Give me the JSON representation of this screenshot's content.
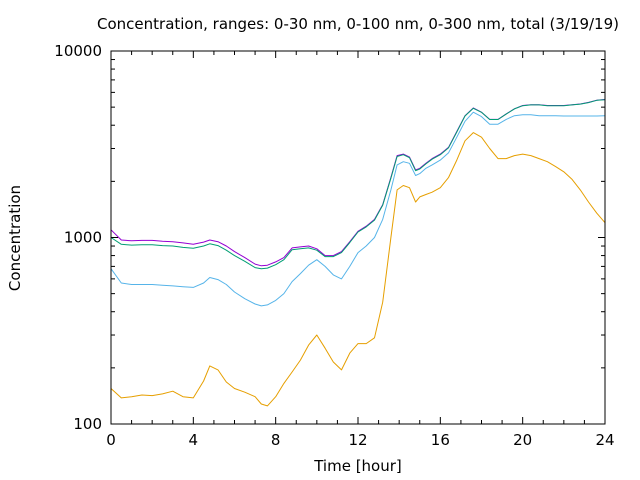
{
  "chart_data": {
    "type": "line",
    "title": "Concentration, ranges: 0-30 nm, 0-100 nm, 0-300 nm, total (3/19/19)",
    "xlabel": "Time [hour]",
    "ylabel": "Concentration",
    "xlim": [
      0,
      24
    ],
    "ylim": [
      100,
      10000
    ],
    "yscale": "log",
    "grid": false,
    "legend": "none",
    "x_ticks": [
      0,
      4,
      8,
      12,
      16,
      20,
      24
    ],
    "y_ticks": [
      100,
      1000,
      10000
    ],
    "x_tick_labels": [
      "0",
      "4",
      "8",
      "12",
      "16",
      "20",
      "24"
    ],
    "y_tick_labels": [
      "100",
      "1000",
      "10000"
    ],
    "x": [
      0,
      0.5,
      1,
      1.5,
      2,
      2.5,
      3,
      3.5,
      4,
      4.5,
      4.8,
      5.2,
      5.6,
      6,
      6.5,
      7,
      7.3,
      7.6,
      8,
      8.4,
      8.8,
      9.2,
      9.6,
      10,
      10.4,
      10.8,
      11.2,
      11.6,
      12,
      12.4,
      12.8,
      13.2,
      13.6,
      13.9,
      14.2,
      14.5,
      14.8,
      15,
      15.3,
      15.6,
      16,
      16.4,
      16.8,
      17.2,
      17.6,
      18,
      18.4,
      18.8,
      19.2,
      19.6,
      20,
      20.4,
      20.8,
      21.2,
      21.6,
      22,
      22.4,
      22.8,
      23.2,
      23.6,
      24
    ],
    "series": [
      {
        "color": "#9400d3",
        "values": [
          1100,
          970,
          960,
          965,
          965,
          955,
          950,
          935,
          920,
          945,
          970,
          950,
          900,
          840,
          780,
          720,
          705,
          710,
          740,
          780,
          880,
          890,
          900,
          870,
          800,
          800,
          840,
          950,
          1080,
          1150,
          1250,
          1500,
          2100,
          2750,
          2800,
          2700,
          2300,
          2350,
          2500,
          2650,
          2800,
          3050,
          3700,
          4500,
          4950,
          4700,
          4300,
          4300,
          4600,
          4900,
          5100,
          5150,
          5150,
          5100,
          5100,
          5100,
          5150,
          5200,
          5300,
          5450,
          5500
        ]
      },
      {
        "color": "#009e73",
        "values": [
          1000,
          920,
          910,
          915,
          915,
          905,
          900,
          885,
          875,
          900,
          925,
          905,
          855,
          800,
          745,
          690,
          680,
          685,
          715,
          760,
          860,
          870,
          880,
          855,
          790,
          790,
          830,
          940,
          1070,
          1140,
          1240,
          1490,
          2080,
          2720,
          2780,
          2680,
          2280,
          2330,
          2480,
          2630,
          2780,
          3030,
          3680,
          4480,
          4930,
          4690,
          4290,
          4290,
          4590,
          4890,
          5090,
          5140,
          5140,
          5090,
          5090,
          5090,
          5140,
          5190,
          5290,
          5440,
          5480
        ]
      },
      {
        "color": "#56b4e9",
        "values": [
          680,
          570,
          560,
          560,
          560,
          555,
          550,
          545,
          540,
          570,
          610,
          595,
          560,
          510,
          470,
          440,
          430,
          435,
          460,
          500,
          580,
          640,
          710,
          760,
          700,
          630,
          600,
          700,
          830,
          900,
          1000,
          1250,
          1800,
          2450,
          2550,
          2500,
          2150,
          2200,
          2350,
          2450,
          2600,
          2850,
          3450,
          4200,
          4700,
          4450,
          4050,
          4050,
          4300,
          4500,
          4550,
          4550,
          4500,
          4500,
          4500,
          4480,
          4480,
          4480,
          4480,
          4480,
          4500
        ]
      },
      {
        "color": "#e69f00",
        "values": [
          155,
          138,
          140,
          143,
          142,
          145,
          150,
          140,
          138,
          170,
          205,
          195,
          168,
          155,
          148,
          140,
          128,
          125,
          140,
          165,
          190,
          220,
          265,
          300,
          255,
          215,
          195,
          240,
          270,
          270,
          290,
          450,
          1000,
          1800,
          1900,
          1850,
          1550,
          1650,
          1700,
          1750,
          1850,
          2100,
          2600,
          3300,
          3650,
          3450,
          3000,
          2650,
          2650,
          2750,
          2800,
          2750,
          2650,
          2550,
          2400,
          2250,
          2050,
          1800,
          1550,
          1350,
          1200
        ]
      }
    ]
  }
}
